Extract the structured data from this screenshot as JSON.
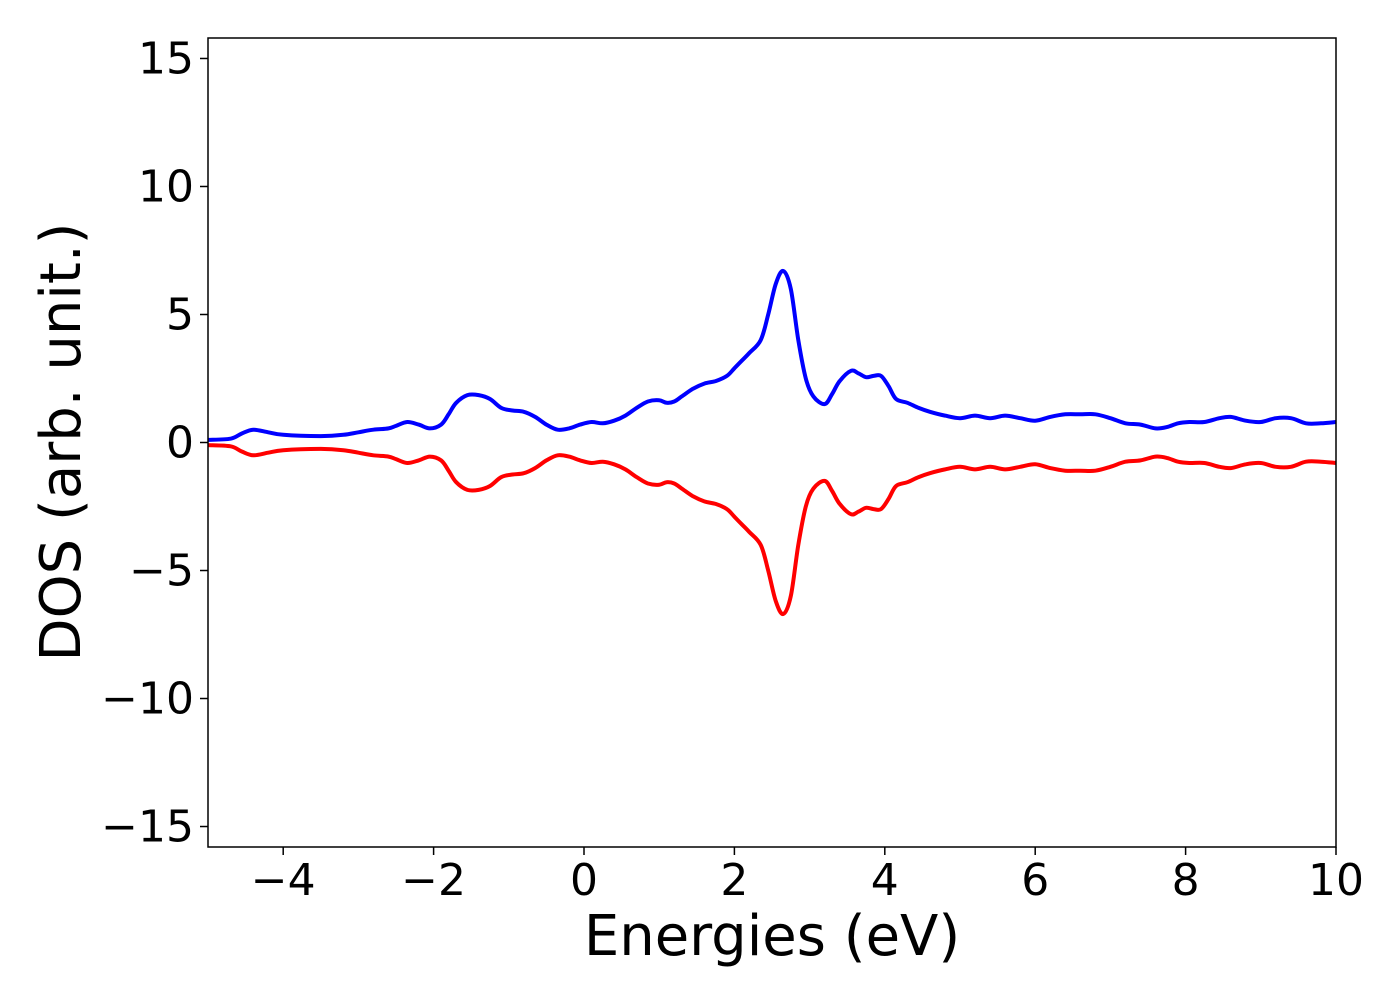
{
  "chart_data": {
    "type": "line",
    "xlabel": "Energies (eV)",
    "ylabel": "DOS (arb. unit.)",
    "xlim": [
      -5,
      10
    ],
    "ylim": [
      -15.8,
      15.8
    ],
    "grid": false,
    "x_ticks": [
      -4,
      -2,
      0,
      2,
      4,
      6,
      8,
      10
    ],
    "x_tick_labels": [
      "−4",
      "−2",
      "0",
      "2",
      "4",
      "6",
      "8",
      "10"
    ],
    "y_ticks": [
      15,
      10,
      5,
      0,
      -5,
      -10,
      -15
    ],
    "y_tick_labels": [
      "15",
      "10",
      "5",
      "0",
      "−5",
      "−10",
      "−15"
    ],
    "series": [
      {
        "color": "#0000ff",
        "x": [
          -5.0,
          -4.7,
          -4.55,
          -4.4,
          -4.2,
          -4.0,
          -3.5,
          -3.2,
          -3.0,
          -2.8,
          -2.6,
          -2.5,
          -2.35,
          -2.2,
          -2.05,
          -1.9,
          -1.8,
          -1.7,
          -1.55,
          -1.4,
          -1.25,
          -1.1,
          -0.95,
          -0.8,
          -0.65,
          -0.5,
          -0.35,
          -0.2,
          -0.05,
          0.1,
          0.25,
          0.4,
          0.55,
          0.7,
          0.85,
          1.0,
          1.1,
          1.2,
          1.3,
          1.45,
          1.6,
          1.75,
          1.9,
          2.0,
          2.1,
          2.2,
          2.35,
          2.45,
          2.55,
          2.65,
          2.75,
          2.85,
          2.95,
          3.05,
          3.2,
          3.3,
          3.4,
          3.55,
          3.65,
          3.75,
          3.85,
          3.95,
          4.05,
          4.15,
          4.3,
          4.45,
          4.6,
          4.8,
          5.0,
          5.2,
          5.4,
          5.6,
          5.8,
          6.0,
          6.2,
          6.4,
          6.6,
          6.8,
          7.0,
          7.2,
          7.4,
          7.6,
          7.75,
          7.9,
          8.05,
          8.25,
          8.45,
          8.6,
          8.8,
          9.0,
          9.2,
          9.4,
          9.6,
          9.8,
          10.0
        ],
        "y": [
          0.1,
          0.15,
          0.35,
          0.5,
          0.4,
          0.3,
          0.25,
          0.3,
          0.4,
          0.5,
          0.55,
          0.65,
          0.8,
          0.7,
          0.55,
          0.7,
          1.1,
          1.55,
          1.85,
          1.85,
          1.7,
          1.35,
          1.25,
          1.2,
          1.0,
          0.7,
          0.5,
          0.55,
          0.7,
          0.8,
          0.75,
          0.85,
          1.05,
          1.35,
          1.6,
          1.65,
          1.55,
          1.6,
          1.8,
          2.1,
          2.3,
          2.4,
          2.6,
          2.9,
          3.2,
          3.5,
          4.0,
          5.0,
          6.2,
          6.7,
          6.0,
          4.0,
          2.5,
          1.8,
          1.5,
          1.9,
          2.4,
          2.8,
          2.7,
          2.55,
          2.6,
          2.6,
          2.2,
          1.7,
          1.55,
          1.35,
          1.2,
          1.05,
          0.95,
          1.05,
          0.95,
          1.05,
          0.95,
          0.85,
          1.0,
          1.1,
          1.1,
          1.1,
          0.95,
          0.75,
          0.7,
          0.55,
          0.6,
          0.75,
          0.8,
          0.8,
          0.95,
          1.0,
          0.85,
          0.8,
          0.95,
          0.95,
          0.75,
          0.75,
          0.8
        ]
      },
      {
        "color": "#ff0000",
        "x": [
          -5.0,
          -4.7,
          -4.55,
          -4.4,
          -4.2,
          -4.0,
          -3.5,
          -3.2,
          -3.0,
          -2.8,
          -2.6,
          -2.5,
          -2.35,
          -2.2,
          -2.05,
          -1.9,
          -1.8,
          -1.7,
          -1.55,
          -1.4,
          -1.25,
          -1.1,
          -0.95,
          -0.8,
          -0.65,
          -0.5,
          -0.35,
          -0.2,
          -0.05,
          0.1,
          0.25,
          0.4,
          0.55,
          0.7,
          0.85,
          1.0,
          1.1,
          1.2,
          1.3,
          1.45,
          1.6,
          1.75,
          1.9,
          2.0,
          2.1,
          2.2,
          2.35,
          2.45,
          2.55,
          2.65,
          2.75,
          2.85,
          2.95,
          3.05,
          3.2,
          3.3,
          3.4,
          3.55,
          3.65,
          3.75,
          3.85,
          3.95,
          4.05,
          4.15,
          4.3,
          4.45,
          4.6,
          4.8,
          5.0,
          5.2,
          5.4,
          5.6,
          5.8,
          6.0,
          6.2,
          6.4,
          6.6,
          6.8,
          7.0,
          7.2,
          7.4,
          7.6,
          7.75,
          7.9,
          8.05,
          8.25,
          8.45,
          8.6,
          8.8,
          9.0,
          9.2,
          9.4,
          9.6,
          9.8,
          10.0
        ],
        "y": [
          -0.1,
          -0.15,
          -0.35,
          -0.5,
          -0.4,
          -0.3,
          -0.25,
          -0.3,
          -0.4,
          -0.5,
          -0.55,
          -0.65,
          -0.8,
          -0.7,
          -0.55,
          -0.7,
          -1.1,
          -1.55,
          -1.85,
          -1.85,
          -1.7,
          -1.35,
          -1.25,
          -1.2,
          -1.0,
          -0.7,
          -0.5,
          -0.55,
          -0.7,
          -0.8,
          -0.75,
          -0.85,
          -1.05,
          -1.35,
          -1.6,
          -1.65,
          -1.55,
          -1.6,
          -1.8,
          -2.1,
          -2.3,
          -2.4,
          -2.6,
          -2.9,
          -3.2,
          -3.5,
          -4.0,
          -5.0,
          -6.2,
          -6.7,
          -6.0,
          -4.0,
          -2.5,
          -1.8,
          -1.5,
          -1.9,
          -2.4,
          -2.8,
          -2.7,
          -2.55,
          -2.6,
          -2.6,
          -2.2,
          -1.7,
          -1.55,
          -1.35,
          -1.2,
          -1.05,
          -0.95,
          -1.05,
          -0.95,
          -1.05,
          -0.95,
          -0.85,
          -1.0,
          -1.1,
          -1.1,
          -1.1,
          -0.95,
          -0.75,
          -0.7,
          -0.55,
          -0.6,
          -0.75,
          -0.8,
          -0.8,
          -0.95,
          -1.0,
          -0.85,
          -0.8,
          -0.95,
          -0.95,
          -0.75,
          -0.75,
          -0.8
        ]
      }
    ]
  }
}
